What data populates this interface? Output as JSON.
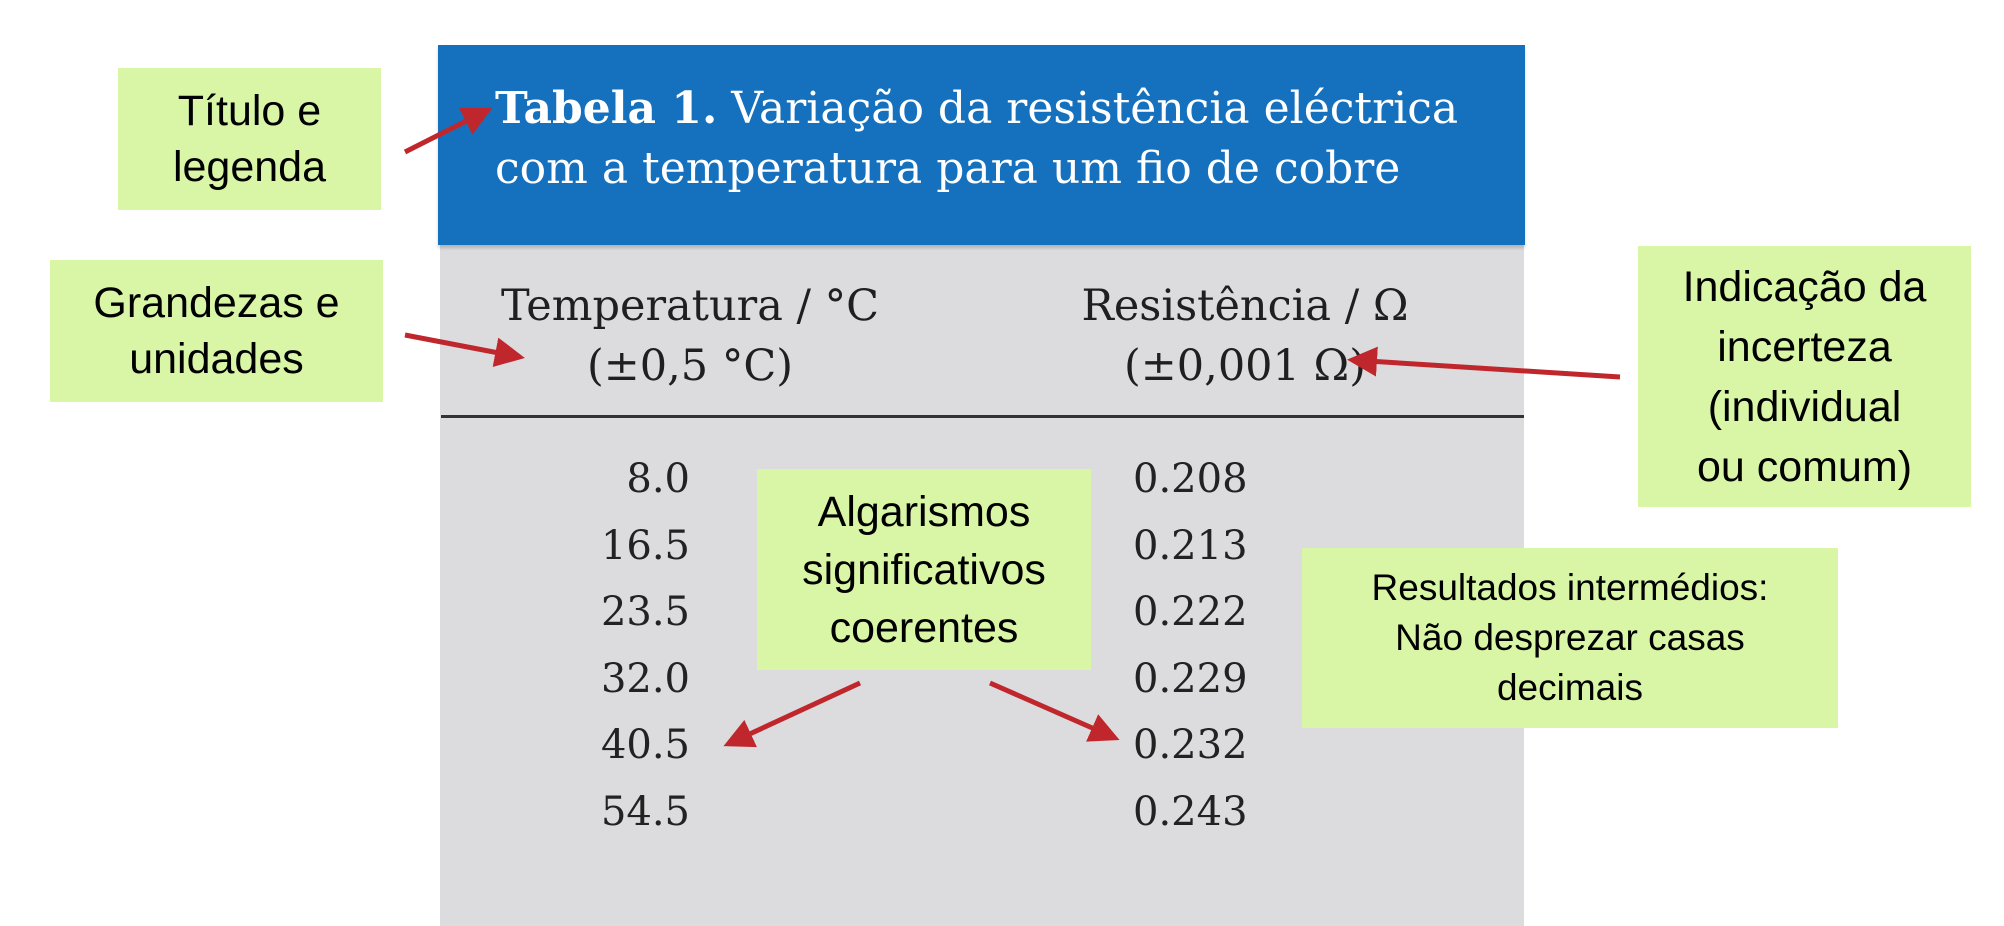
{
  "table": {
    "title_bold": "Tabela 1.",
    "title_rest_line1": " Variação da resistência eléctrica",
    "title_line2": "com a temperatura para um fio de cobre",
    "col1": {
      "label": "Temperatura / °C",
      "uncertainty": "(±0,5 °C)"
    },
    "col2": {
      "label": "Resistência / Ω",
      "uncertainty": "(±0,001 Ω)"
    },
    "rows": [
      [
        "8.0",
        "0.208"
      ],
      [
        "16.5",
        "0.213"
      ],
      [
        "23.5",
        "0.222"
      ],
      [
        "32.0",
        "0.229"
      ],
      [
        "40.5",
        "0.232"
      ],
      [
        "54.5",
        "0.243"
      ]
    ]
  },
  "callouts": {
    "title": [
      "Título e",
      "legenda"
    ],
    "quantities": [
      "Grandezas e",
      "unidades"
    ],
    "uncertainty": [
      "Indicação da",
      "incerteza",
      "(individual",
      "ou comum)"
    ],
    "sigfigs": [
      "Algarismos",
      "significativos",
      "coerentes"
    ],
    "intermediate": [
      "Resultados intermédios:",
      "Não desprezar casas",
      "decimais"
    ]
  },
  "colors": {
    "title_bar": "#1570be",
    "table_bg": "#dcdcde",
    "callout_bg": "#d9f5a6",
    "arrow": "#c0272d"
  }
}
